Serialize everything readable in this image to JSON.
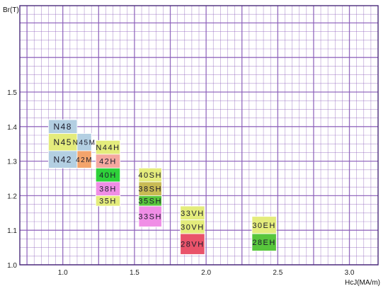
{
  "chart_data": {
    "type": "block-map",
    "xlabel": "HcJ(MA/m)",
    "ylabel": "Br(T)",
    "xlim": [
      0.7,
      3.2
    ],
    "ylim": [
      1.0,
      1.75
    ],
    "x_ticks": [
      "1.0",
      "1.5",
      "2.0",
      "2.5",
      "3.0"
    ],
    "y_ticks": [
      "1.0",
      "1.1",
      "1.2",
      "1.3",
      "1.4",
      "1.5"
    ],
    "grid": true,
    "colors": {
      "grid": "#8a5cb8",
      "axis": "#4a2a7a",
      "light_blue": "#b3cfe2",
      "yellow_green": "#e4ec7c",
      "orange": "#f3a46c",
      "salmon": "#f5a8a0",
      "green": "#2ed13a",
      "pink": "#f08ee6",
      "olive": "#c9bb54",
      "green_mid": "#58c63c",
      "red_pink": "#e9536a"
    },
    "blocks": [
      {
        "label": "N48",
        "x": [
          0.9,
          1.1
        ],
        "y": [
          1.38,
          1.42
        ],
        "color": "light_blue",
        "font_size": 12
      },
      {
        "label": "N45",
        "x": [
          0.9,
          1.1
        ],
        "y": [
          1.33,
          1.38
        ],
        "color": "yellow_green",
        "font_size": 12
      },
      {
        "label": "N42",
        "x": [
          0.9,
          1.1
        ],
        "y": [
          1.28,
          1.33
        ],
        "color": "light_blue",
        "font_size": 12
      },
      {
        "label": "N45M",
        "x": [
          1.1,
          1.2
        ],
        "y": [
          1.33,
          1.38
        ],
        "color": "light_blue",
        "font_size": 10
      },
      {
        "label": "42M",
        "x": [
          1.1,
          1.2
        ],
        "y": [
          1.28,
          1.33
        ],
        "color": "orange",
        "font_size": 10
      },
      {
        "label": "N44H",
        "x": [
          1.23,
          1.4
        ],
        "y": [
          1.32,
          1.36
        ],
        "color": "yellow_green",
        "font_size": 11
      },
      {
        "label": "42H",
        "x": [
          1.23,
          1.4
        ],
        "y": [
          1.28,
          1.32
        ],
        "color": "salmon",
        "font_size": 11
      },
      {
        "label": "40H",
        "x": [
          1.23,
          1.4
        ],
        "y": [
          1.24,
          1.28
        ],
        "color": "green",
        "font_size": 11
      },
      {
        "label": "38H",
        "x": [
          1.23,
          1.4
        ],
        "y": [
          1.2,
          1.24
        ],
        "color": "pink",
        "font_size": 11
      },
      {
        "label": "35H",
        "x": [
          1.23,
          1.4
        ],
        "y": [
          1.17,
          1.2
        ],
        "color": "yellow_green",
        "font_size": 11
      },
      {
        "label": "40SH",
        "x": [
          1.53,
          1.69
        ],
        "y": [
          1.24,
          1.28
        ],
        "color": "yellow_green",
        "font_size": 11
      },
      {
        "label": "38SH",
        "x": [
          1.53,
          1.69
        ],
        "y": [
          1.2,
          1.24
        ],
        "color": "olive",
        "font_size": 11
      },
      {
        "label": "35SH",
        "x": [
          1.53,
          1.69
        ],
        "y": [
          1.17,
          1.2
        ],
        "color": "green_mid",
        "font_size": 11
      },
      {
        "label": "33SH",
        "x": [
          1.53,
          1.69
        ],
        "y": [
          1.11,
          1.17
        ],
        "color": "pink",
        "font_size": 11
      },
      {
        "label": "33VH",
        "x": [
          1.82,
          1.99
        ],
        "y": [
          1.13,
          1.17
        ],
        "color": "yellow_green",
        "font_size": 11
      },
      {
        "label": "30VH",
        "x": [
          1.82,
          1.99
        ],
        "y": [
          1.09,
          1.13
        ],
        "color": "yellow_green",
        "font_size": 11
      },
      {
        "label": "28VH",
        "x": [
          1.82,
          1.99
        ],
        "y": [
          1.03,
          1.09
        ],
        "color": "red_pink",
        "font_size": 11
      },
      {
        "label": "30EH",
        "x": [
          2.32,
          2.49
        ],
        "y": [
          1.09,
          1.14
        ],
        "color": "yellow_green",
        "font_size": 11
      },
      {
        "label": "28EH",
        "x": [
          2.32,
          2.49
        ],
        "y": [
          1.04,
          1.09
        ],
        "color": "green_mid",
        "font_size": 11
      }
    ]
  }
}
